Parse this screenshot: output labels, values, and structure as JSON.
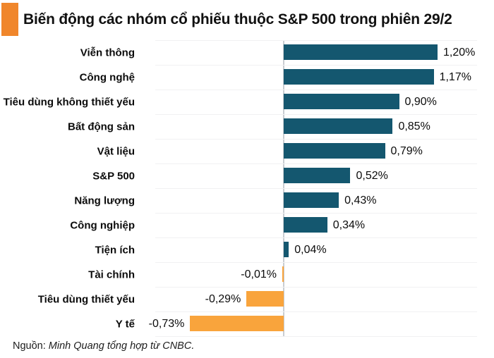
{
  "header": {
    "title": "Biến động các nhóm cổ phiếu thuộc S&P 500 trong phiên 29/2"
  },
  "footer": {
    "prefix": "Nguồn:",
    "source": "Minh Quang tổng hợp từ CNBC."
  },
  "colors": {
    "accent_square": "#F0862B",
    "positive_bar": "#14576F",
    "negative_bar": "#F9A43C",
    "axis_line": "#C9CDD2",
    "row_separator": "#F1F1F2"
  },
  "chart_data": {
    "type": "bar",
    "orientation": "horizontal",
    "title": "Biến động các nhóm cổ phiếu thuộc S&P 500 trong phiên 29/2",
    "categories": [
      "Viễn thông",
      "Công nghệ",
      "Tiêu dùng không thiết yếu",
      "Bất động sản",
      "Vật liệu",
      "S&P 500",
      "Năng lượng",
      "Công nghiệp",
      "Tiện ích",
      "Tài chính",
      "Tiêu dùng thiết yếu",
      "Y tế"
    ],
    "values": [
      1.2,
      1.17,
      0.9,
      0.85,
      0.79,
      0.52,
      0.43,
      0.34,
      0.04,
      -0.01,
      -0.29,
      -0.73
    ],
    "value_labels": [
      "1,20%",
      "1,17%",
      "0,90%",
      "0,85%",
      "0,79%",
      "0,52%",
      "0,43%",
      "0,34%",
      "0,04%",
      "-0,01%",
      "-0,29%",
      "-0,73%"
    ],
    "unit": "%",
    "xlim": [
      -0.8,
      1.6
    ],
    "grid": "light-row-separators",
    "legend": "none",
    "value_label_position": "outside-bar-end",
    "positive_color": "#14576F",
    "negative_color": "#F9A43C"
  }
}
